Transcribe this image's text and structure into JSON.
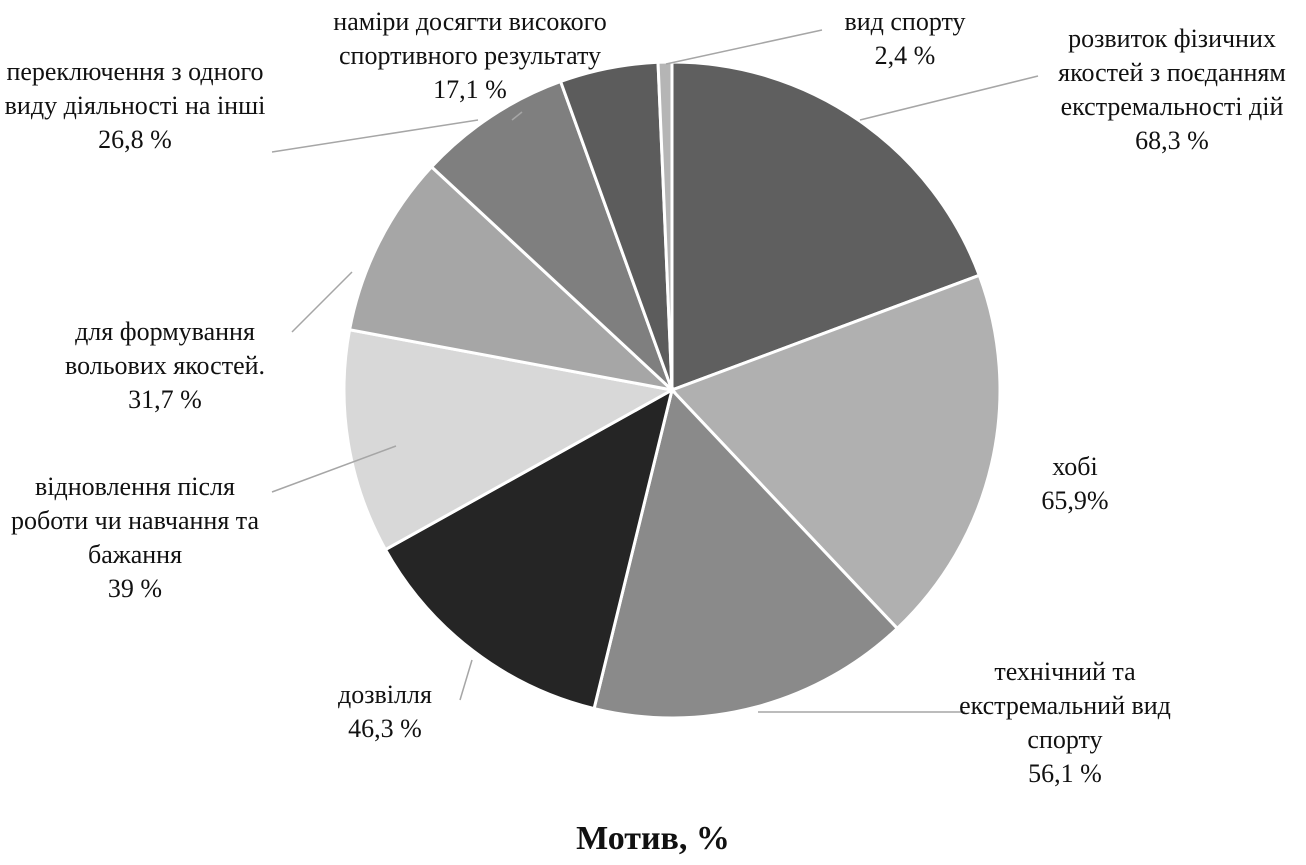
{
  "chart_data": {
    "type": "pie",
    "title": "Мотив, %",
    "categories": [
      "розвиток фізичних якостей з поєданням екстремальності дій",
      "хобі",
      "технічний та екстремальний вид спорту",
      "дозвілля",
      "відновлення після роботи чи навчання та бажання",
      "для формування вольових якостей.",
      "переключення з одного виду діяльності на інші",
      "наміри досягти високого спортивного результату",
      "вид спорту"
    ],
    "values": [
      68.3,
      65.9,
      56.1,
      46.3,
      39,
      31.7,
      26.8,
      17.1,
      2.4
    ],
    "value_labels": [
      "68,3 %",
      "65,9%",
      "56,1 %",
      "46,3 %",
      "39 %",
      "31,7 %",
      "26,8 %",
      "17,1 %",
      "2,4 %"
    ],
    "colors": [
      "#5f5f5f",
      "#b0b0b0",
      "#8a8a8a",
      "#252525",
      "#d8d8d8",
      "#a6a6a6",
      "#7f7f7f",
      "#5c5c5c",
      "#b5b5b5"
    ]
  }
}
